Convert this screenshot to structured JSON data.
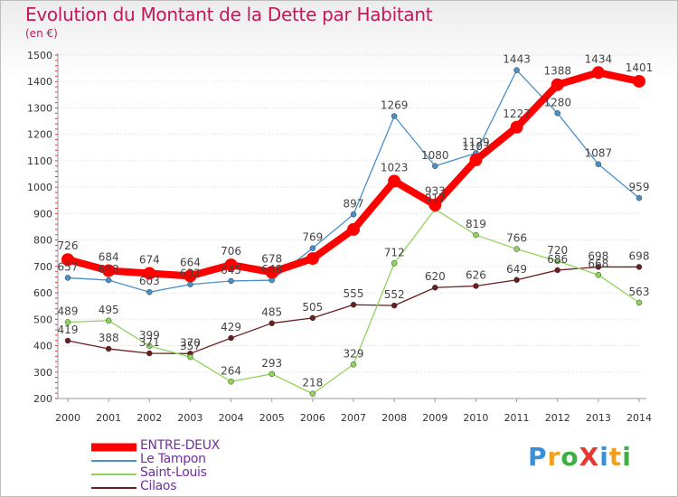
{
  "page": {
    "title": "Evolution du Montant de la Dette par Habitant",
    "subtitle": "(en €)"
  },
  "logo": {
    "text": "ProXiti",
    "letters": [
      "P",
      "r",
      "o",
      "X",
      "i",
      "t",
      "i"
    ],
    "colors": [
      "#3a8fd8",
      "#f0a020",
      "#3cb043",
      "#e53935",
      "#3a8fd8",
      "#f0a020",
      "#3cb043"
    ]
  },
  "chart_data": {
    "type": "line",
    "title": "Evolution du Montant de la Dette par Habitant",
    "subtitle": "(en €)",
    "xlabel": "",
    "ylabel": "",
    "x": [
      2000,
      2001,
      2002,
      2003,
      2004,
      2005,
      2006,
      2007,
      2008,
      2009,
      2010,
      2011,
      2012,
      2013,
      2014
    ],
    "ylim": [
      200,
      1500
    ],
    "yticks": [
      200,
      300,
      400,
      500,
      600,
      700,
      800,
      900,
      1000,
      1100,
      1200,
      1300,
      1400,
      1500
    ],
    "grid": "horizontal",
    "legend": "bottom-left",
    "series": [
      {
        "name": "ENTRE-DEUX",
        "color": "#ff0000",
        "emphasis": true,
        "values": [
          726,
          684,
          674,
          664,
          706,
          678,
          730,
          840,
          1023,
          933,
          1103,
          1227,
          1388,
          1434,
          1401
        ],
        "labels": [
          "726",
          "684",
          "674",
          "664",
          "706",
          "678",
          "",
          "",
          "1023",
          "933",
          "1103",
          "1227",
          "1388",
          "1434",
          "1401"
        ]
      },
      {
        "name": "Le Tampon",
        "color": "#4a90c8",
        "values": [
          657,
          648,
          603,
          632,
          645,
          648,
          769,
          897,
          1269,
          1080,
          1129,
          1443,
          1280,
          1087,
          959
        ],
        "labels": [
          "657",
          "648",
          "603",
          "632",
          "645",
          "648",
          "769",
          "897",
          "1269",
          "1080",
          "1129",
          "1443",
          "1280",
          "1087",
          "959"
        ]
      },
      {
        "name": "Saint-Louis",
        "color": "#8fd45a",
        "values": [
          489,
          495,
          399,
          357,
          264,
          293,
          218,
          329,
          712,
          917,
          819,
          766,
          720,
          668,
          563
        ],
        "labels": [
          "489",
          "495",
          "399",
          "357",
          "264",
          "293",
          "218",
          "329",
          "712",
          "917",
          "819",
          "766",
          "720",
          "668",
          "563"
        ]
      },
      {
        "name": "Cilaos",
        "color": "#6b1e1e",
        "values": [
          419,
          388,
          371,
          370,
          429,
          485,
          505,
          555,
          552,
          620,
          626,
          649,
          686,
          698,
          698
        ],
        "labels": [
          "419",
          "388",
          "371",
          "370",
          "429",
          "485",
          "505",
          "555",
          "552",
          "620",
          "626",
          "649",
          "686",
          "698",
          "698"
        ]
      }
    ]
  }
}
